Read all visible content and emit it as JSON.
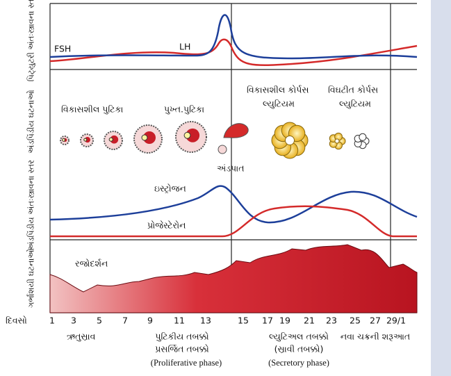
{
  "row_labels": [
    "પિટ્યુટરી અંતઃસ્ત્રાવના સ્તર",
    "અંડપિંડીય ઘટનાઓ",
    "અંડપિંડીય અંતઃસ્ત્રાવના સ્તર",
    "ગર્ભાશયી ઘટનાઓ"
  ],
  "pituitary": {
    "fsh": "FSH",
    "lh": "LH"
  },
  "ovarian_events": {
    "developing_follicle": "વિકાસશીલ પુટિકા",
    "mature_follicle": "પુખ્ત.પુટિકા",
    "developing_corpus_luteum": [
      "વિકાસશીલ કોર્પસ",
      "લ્યુટિયમ"
    ],
    "degenerating_corpus_luteum": [
      "વિઘટીત કોર્પસ",
      "લ્યુટિયમ"
    ],
    "ovulation": "અંડપાત"
  },
  "ovarian_hormones": {
    "estrogen": "ઇસ્ટ્રોજન",
    "progesterone": "પ્રોજેસ્ટેરોન"
  },
  "uterine_events": {
    "menstruation_onset": "રજોદર્શન"
  },
  "days": {
    "label": "દિવસો",
    "ticks": [
      "1",
      "3",
      "5",
      "7",
      "9",
      "11",
      "13",
      "15",
      "17",
      "19",
      "21",
      "23",
      "25",
      "27",
      "29/1"
    ]
  },
  "phases": {
    "menstrual": "ઋતુસ્રાવ",
    "follicular": [
      "પુટિકીય તબક્કો",
      "પ્રસર્જિત તબક્કો",
      "(Proliferative phase)"
    ],
    "luteal": [
      "લ્યુટિઅલ તબક્કો",
      "(સ્રાવી તબક્કો)",
      "(Secretory phase)"
    ],
    "new_cycle": "નવા ચક્રની શરૂઆત"
  }
}
